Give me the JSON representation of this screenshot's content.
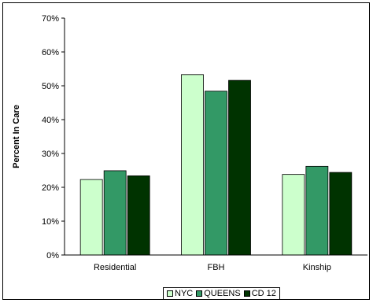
{
  "chart_data": {
    "type": "bar",
    "categories": [
      "Residential",
      "FBH",
      "Kinship"
    ],
    "series": [
      {
        "name": "NYC",
        "values": [
          22.3,
          53.3,
          23.8
        ],
        "color": "#ccffcc"
      },
      {
        "name": "QUEENS",
        "values": [
          24.9,
          48.4,
          26.2
        ],
        "color": "#339966"
      },
      {
        "name": "CD 12",
        "values": [
          23.4,
          51.6,
          24.4
        ],
        "color": "#003300"
      }
    ],
    "ylabel": "Percent In Care",
    "xlabel": "",
    "ylim": [
      0,
      70
    ],
    "ytick_step": 10,
    "ytick_suffix": "%",
    "grid": false,
    "legend_position": "bottom"
  }
}
